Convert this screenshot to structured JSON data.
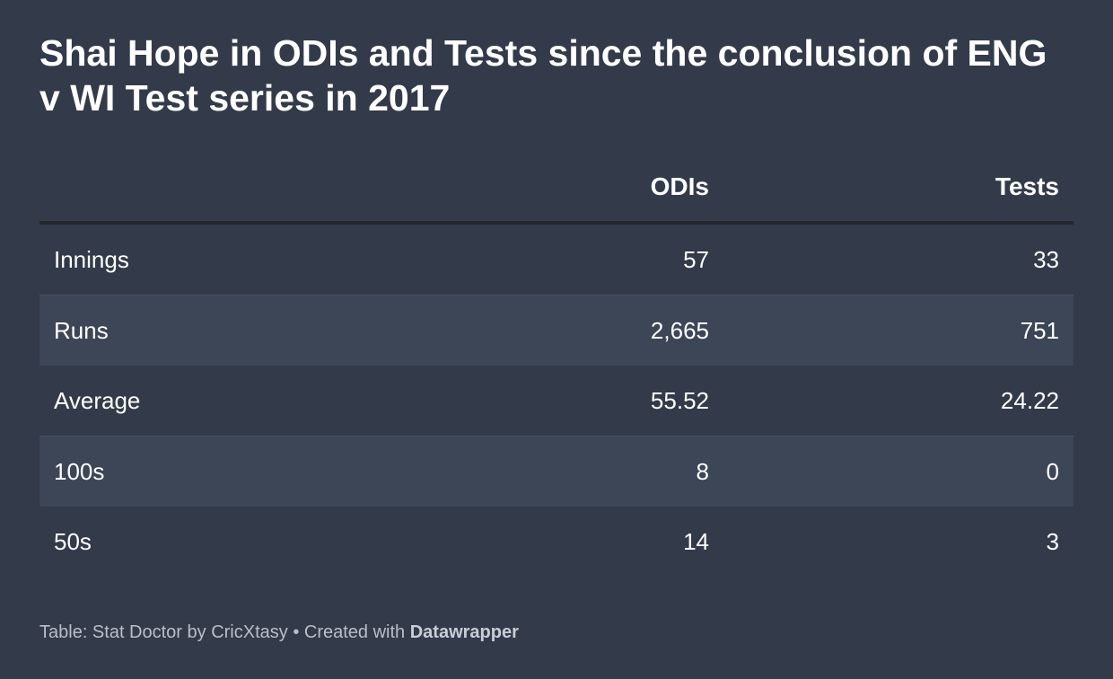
{
  "title": "Shai Hope in ODIs and Tests since the conclusion of ENG v WI Test series in 2017",
  "table": {
    "columns": [
      "",
      "ODIs",
      "Tests"
    ],
    "rows": [
      {
        "label": "Innings",
        "odis": "57",
        "tests": "33"
      },
      {
        "label": "Runs",
        "odis": "2,665",
        "tests": "751"
      },
      {
        "label": "Average",
        "odis": "55.52",
        "tests": "24.22"
      },
      {
        "label": "100s",
        "odis": "8",
        "tests": "0"
      },
      {
        "label": "50s",
        "odis": "14",
        "tests": "3"
      }
    ]
  },
  "footer": {
    "source": "Table: Stat Doctor by CricXtasy",
    "separator": " • Created with ",
    "brand": "Datawrapper"
  },
  "chart_data": {
    "type": "table",
    "title": "Shai Hope in ODIs and Tests since the conclusion of ENG v WI Test series in 2017",
    "columns": [
      "ODIs",
      "Tests"
    ],
    "rows": [
      "Innings",
      "Runs",
      "Average",
      "100s",
      "50s"
    ],
    "values": [
      [
        57,
        33
      ],
      [
        2665,
        751
      ],
      [
        55.52,
        24.22
      ],
      [
        8,
        0
      ],
      [
        14,
        3
      ]
    ]
  }
}
